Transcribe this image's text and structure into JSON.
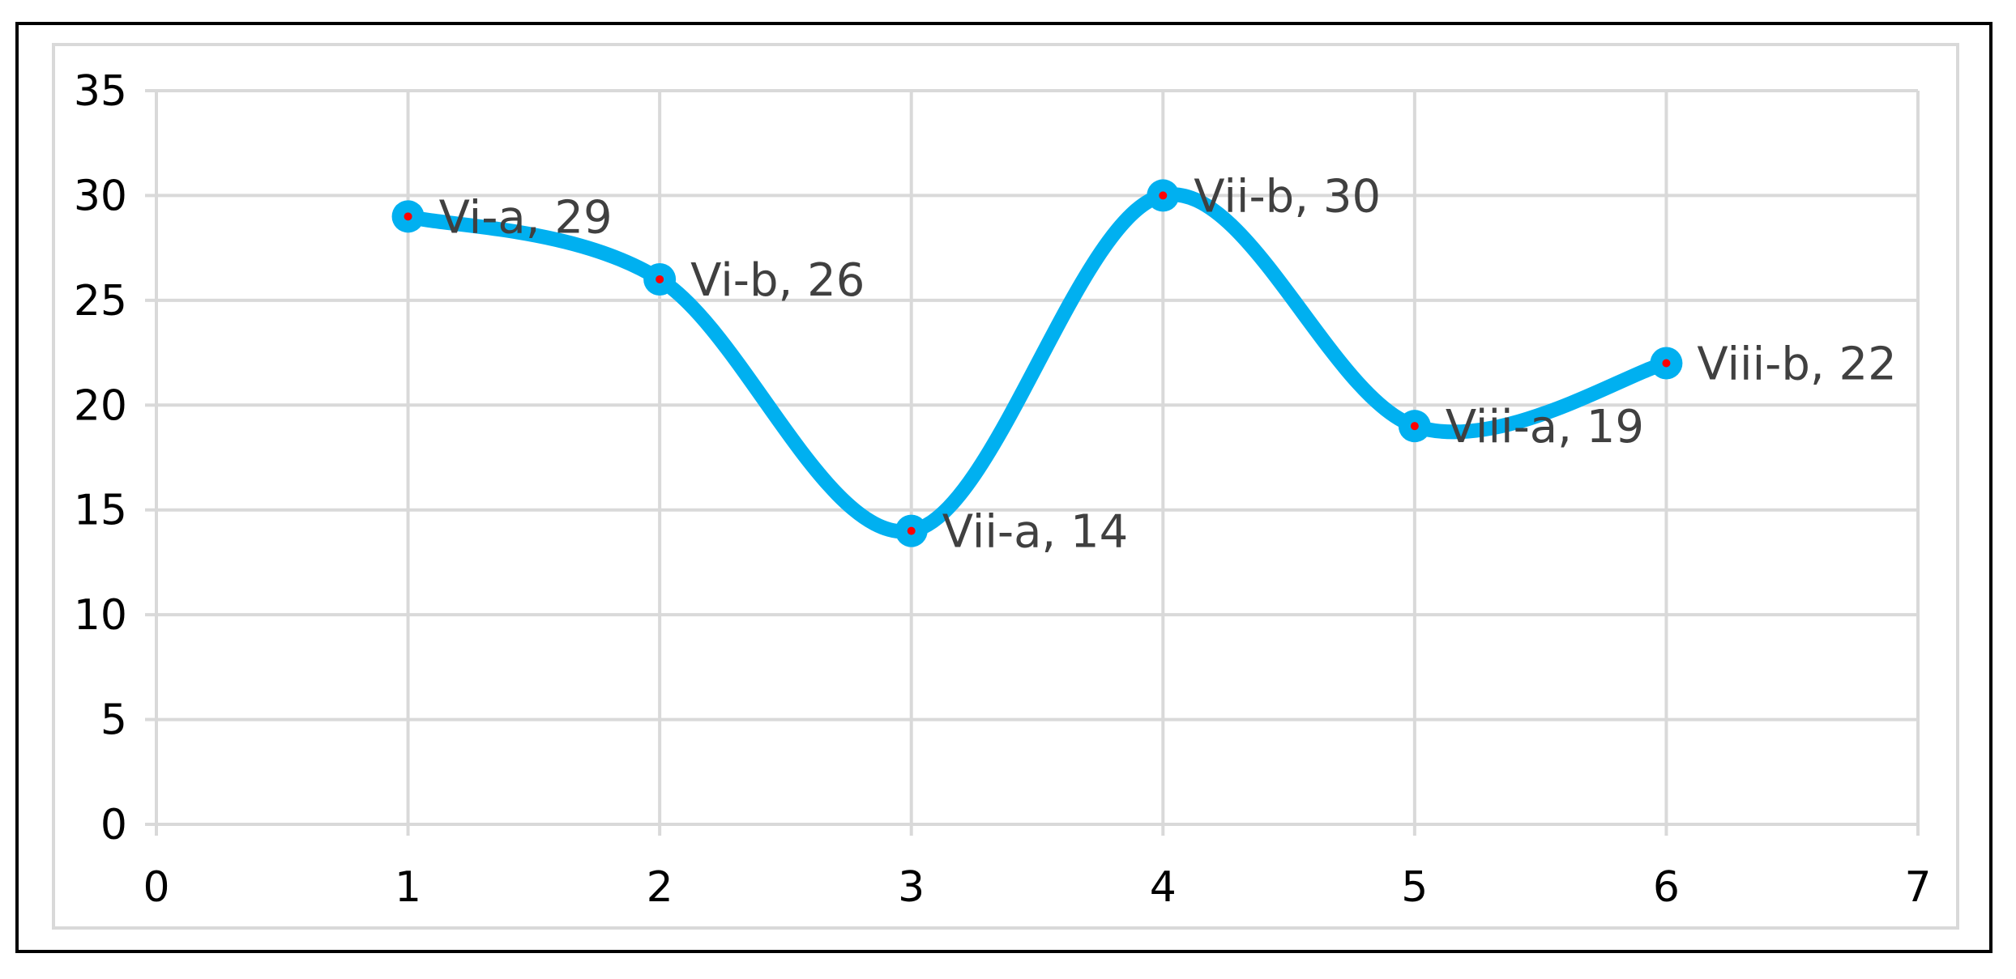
{
  "chart_data": {
    "type": "scatter",
    "style": "smooth-line-with-markers",
    "x": [
      1,
      2,
      3,
      4,
      5,
      6
    ],
    "y": [
      29,
      26,
      14,
      30,
      19,
      22
    ],
    "point_labels": [
      "Vi-a, 29",
      "Vi-b, 26",
      "Vii-a, 14",
      "Vii-b, 30",
      "Viii-a, 19",
      "Viii-b, 22"
    ],
    "xlim": [
      0,
      7
    ],
    "ylim": [
      0,
      35
    ],
    "x_ticks": [
      "0",
      "1",
      "2",
      "3",
      "4",
      "5",
      "6",
      "7"
    ],
    "y_ticks": [
      "0",
      "5",
      "10",
      "15",
      "20",
      "25",
      "30",
      "35"
    ],
    "title": "",
    "xlabel": "",
    "ylabel": "",
    "grid": true,
    "legend": "none",
    "colors": {
      "line": "#00b0f0",
      "marker_center": "#ff0000",
      "grid": "#d9d9d9",
      "data_label": "#404040"
    }
  }
}
